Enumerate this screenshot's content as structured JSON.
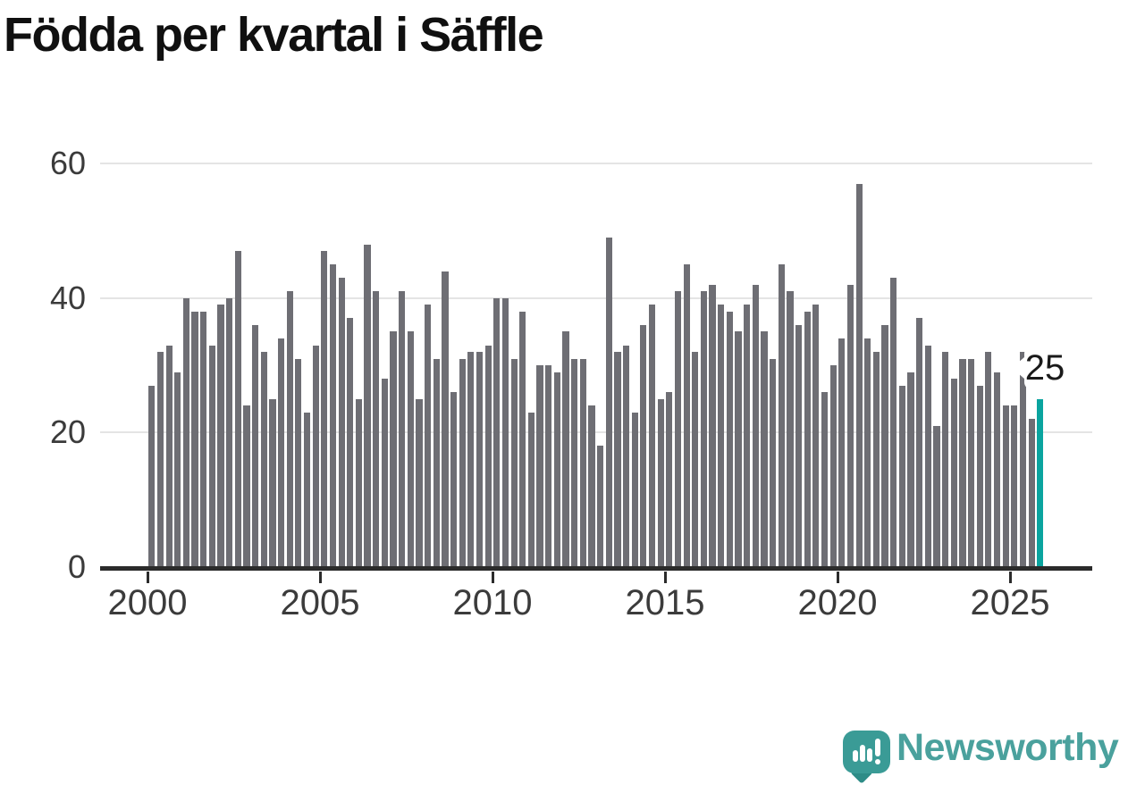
{
  "chart_data": {
    "type": "bar",
    "title": "Födda per kvartal i Säffle",
    "frequency": "quarterly",
    "x_start": "2000 Q1",
    "x_end": "2025 Q4",
    "values": [
      27,
      32,
      33,
      29,
      40,
      38,
      38,
      33,
      39,
      40,
      47,
      24,
      36,
      32,
      25,
      34,
      41,
      31,
      23,
      33,
      47,
      45,
      43,
      37,
      25,
      48,
      41,
      28,
      35,
      41,
      35,
      25,
      39,
      31,
      44,
      26,
      31,
      32,
      32,
      33,
      40,
      40,
      31,
      38,
      23,
      30,
      30,
      29,
      35,
      31,
      31,
      24,
      18,
      49,
      32,
      33,
      23,
      36,
      39,
      25,
      26,
      41,
      45,
      32,
      41,
      42,
      39,
      38,
      35,
      39,
      42,
      35,
      31,
      45,
      41,
      36,
      38,
      39,
      26,
      30,
      34,
      42,
      57,
      34,
      32,
      36,
      43,
      27,
      29,
      37,
      33,
      21,
      32,
      28,
      31,
      31,
      27,
      32,
      29,
      24,
      24,
      32,
      22,
      25
    ],
    "x_tick_labels": [
      "2000",
      "2005",
      "2010",
      "2015",
      "2020",
      "2025"
    ],
    "y_tick_values": [
      0,
      20,
      40,
      60
    ],
    "y_tick_labels": [
      "0",
      "20",
      "40",
      "60"
    ],
    "ylim": [
      0,
      60
    ],
    "grid": "horizontal",
    "legend": "none",
    "highlight": {
      "index": 103,
      "label": "25"
    },
    "colors": {
      "bar": "#6e6e74",
      "highlight": "#0aa49f",
      "grid": "#e4e4e4",
      "axis": "#2b2b2b",
      "tick_label": "#3b3b3b"
    }
  },
  "annotation": {
    "label": "25"
  },
  "branding": {
    "logo_text": "Newsworthy",
    "text_color": "#4aa19d",
    "bubble_color": "#3a9b96"
  }
}
